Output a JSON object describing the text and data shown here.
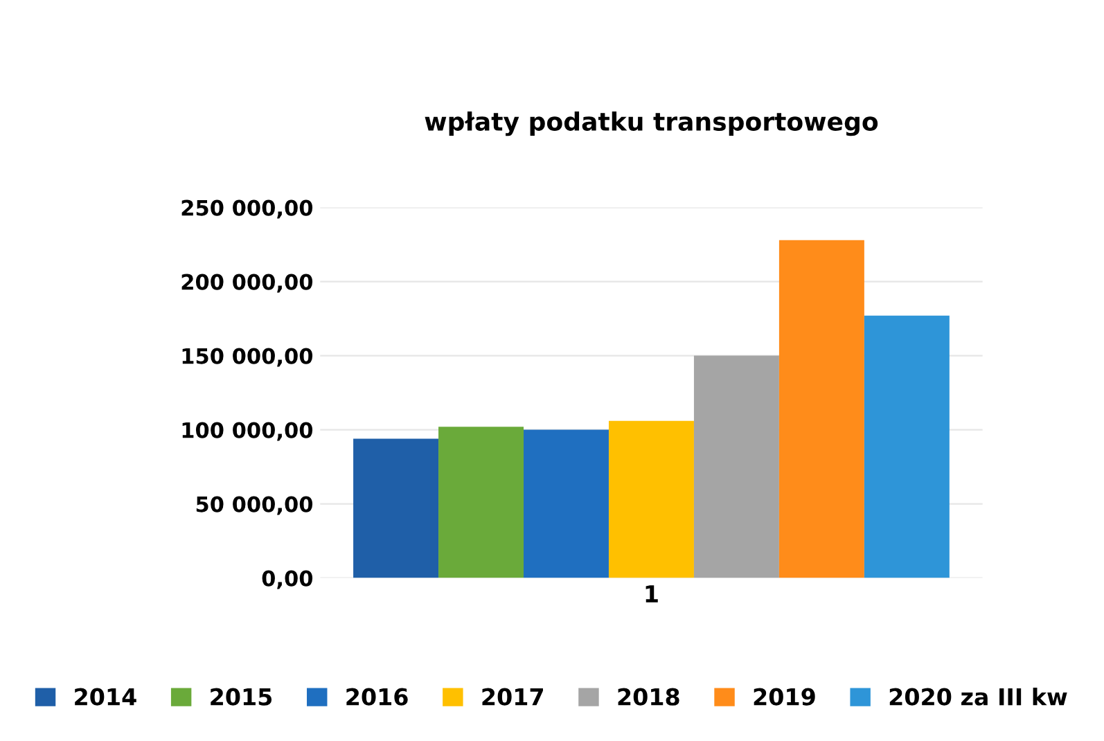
{
  "chart_data": {
    "type": "bar",
    "title": "wpłaty podatku transportowego",
    "categories": [
      "1"
    ],
    "series": [
      {
        "name": "2014",
        "color": "#1f5fa8",
        "values": [
          94000
        ]
      },
      {
        "name": "2015",
        "color": "#6aaa3a",
        "values": [
          102000
        ]
      },
      {
        "name": "2016",
        "color": "#1f6fc0",
        "values": [
          100000
        ]
      },
      {
        "name": "2017",
        "color": "#ffc000",
        "values": [
          106000
        ]
      },
      {
        "name": "2018",
        "color": "#a5a5a5",
        "values": [
          150000
        ]
      },
      {
        "name": "2019",
        "color": "#ff8c1a",
        "values": [
          228000
        ]
      },
      {
        "name": "2020 za III kw",
        "color": "#2e95d8",
        "values": [
          177000
        ]
      }
    ],
    "ylim": [
      0,
      250000
    ],
    "yticks": [
      {
        "value": 0,
        "label": "0,00"
      },
      {
        "value": 50000,
        "label": "50 000,00"
      },
      {
        "value": 100000,
        "label": "100 000,00"
      },
      {
        "value": 150000,
        "label": "150 000,00"
      },
      {
        "value": 200000,
        "label": "200 000,00"
      },
      {
        "value": 250000,
        "label": "250 000,00"
      }
    ],
    "grid": "y",
    "legend": "bottom"
  }
}
